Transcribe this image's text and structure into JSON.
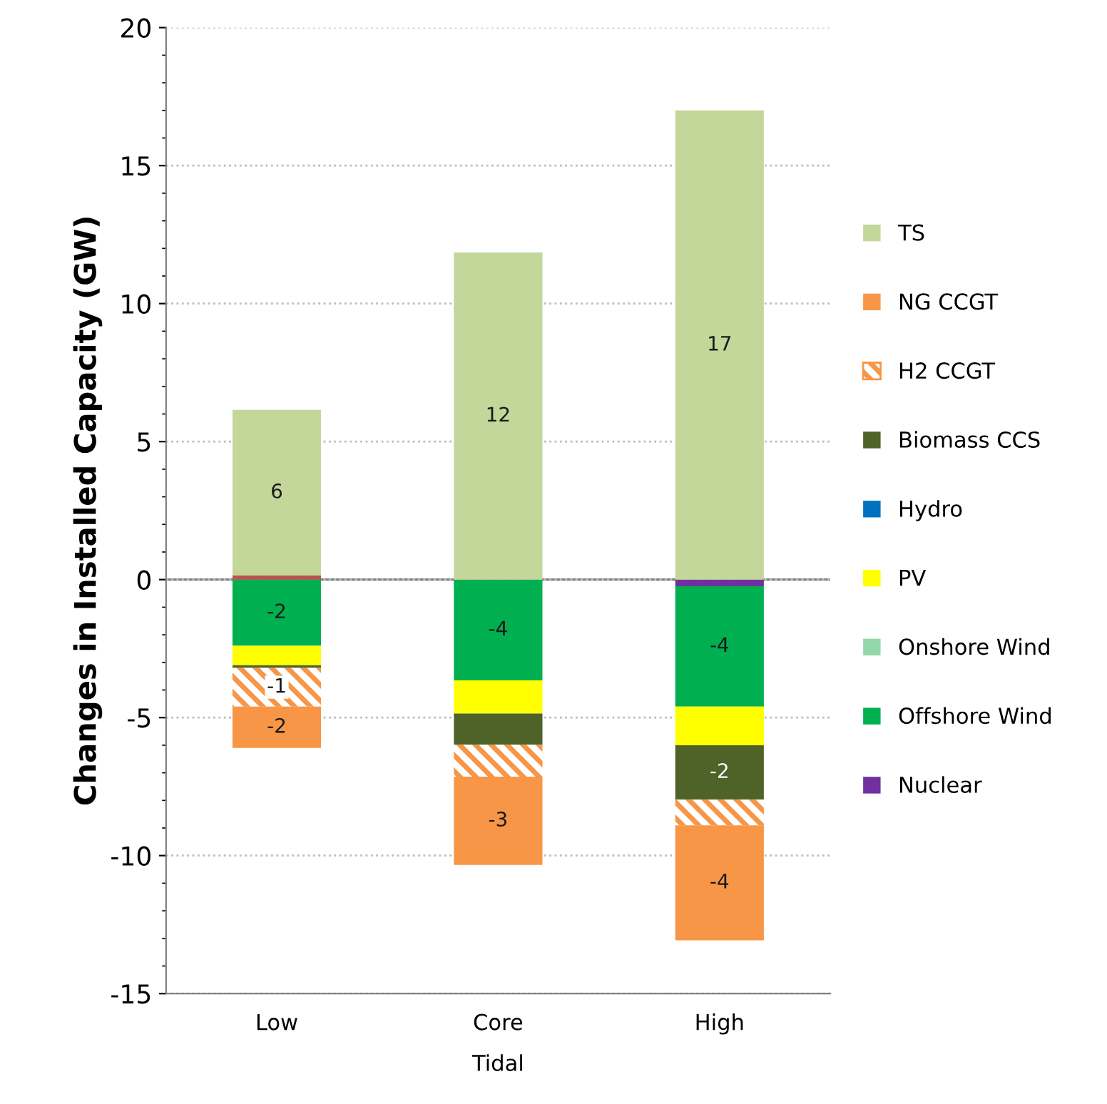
{
  "chart_data": {
    "type": "bar",
    "stacked": true,
    "categories": [
      "Low",
      "Core",
      "High"
    ],
    "xlabel": "Tidal",
    "ylabel": "Changes in Installed Capacity (GW)",
    "ylim": [
      -15,
      20
    ],
    "yticks": [
      -15,
      -10,
      -5,
      0,
      5,
      10,
      15,
      20
    ],
    "grid": "y",
    "legend": "right",
    "series": [
      {
        "color": "#c0504d",
        "values": [
          0.15,
          null,
          null
        ]
      },
      {
        "name": "Nuclear",
        "color": "#7030a0",
        "values": [
          null,
          null,
          -0.24
        ]
      },
      {
        "name": "Offshore Wind",
        "color": "#00b050",
        "values": [
          -2.4,
          -3.65,
          -4.36
        ],
        "value_labels": [
          "-2",
          "-4",
          "-4"
        ]
      },
      {
        "name": "Onshore Wind",
        "color": "#92d8a8",
        "values": [
          null,
          null,
          null
        ]
      },
      {
        "name": "PV",
        "color": "#ffff00",
        "values": [
          -0.7,
          -1.2,
          -1.4
        ]
      },
      {
        "name": "Hydro",
        "color": "#0070c0",
        "values": [
          null,
          null,
          null
        ]
      },
      {
        "name": "Biomass CCS",
        "color": "#4f6228",
        "values": [
          -0.1,
          -1.13,
          -1.97
        ],
        "value_labels": [
          null,
          null,
          "-2"
        ]
      },
      {
        "name": "H2 CCGT",
        "color": "#f79646",
        "values": [
          -1.4,
          -1.16,
          -0.93
        ],
        "value_labels": [
          "-1",
          null,
          null
        ]
      },
      {
        "name": "NG CCGT",
        "color": "#f79646",
        "values": [
          -1.5,
          -3.2,
          -4.17
        ],
        "value_labels": [
          "-2",
          "-3",
          "-4"
        ]
      },
      {
        "name": "TS",
        "color": "#c4d79b",
        "values": [
          6.0,
          11.85,
          17.0
        ],
        "value_labels": [
          "6",
          "12",
          "17"
        ]
      }
    ]
  }
}
